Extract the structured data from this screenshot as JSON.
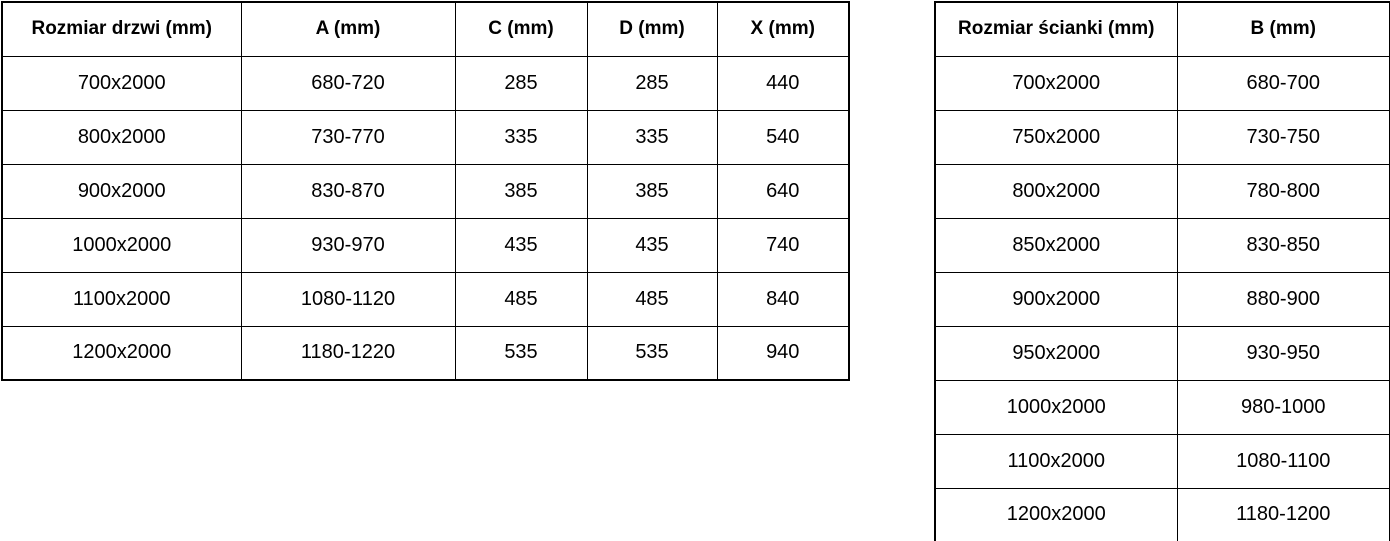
{
  "colors": {
    "background": "#ffffff",
    "border": "#000000",
    "text": "#000000"
  },
  "door_table": {
    "headers": [
      "Rozmiar drzwi (mm)",
      "A (mm)",
      "C (mm)",
      "D (mm)",
      "X (mm)"
    ],
    "rows": [
      [
        "700x2000",
        "680-720",
        "285",
        "285",
        "440"
      ],
      [
        "800x2000",
        "730-770",
        "335",
        "335",
        "540"
      ],
      [
        "900x2000",
        "830-870",
        "385",
        "385",
        "640"
      ],
      [
        "1000x2000",
        "930-970",
        "435",
        "435",
        "740"
      ],
      [
        "1100x2000",
        "1080-1120",
        "485",
        "485",
        "840"
      ],
      [
        "1200x2000",
        "1180-1220",
        "535",
        "535",
        "940"
      ]
    ]
  },
  "wall_table": {
    "headers": [
      "Rozmiar ścianki (mm)",
      "B (mm)"
    ],
    "rows": [
      [
        "700x2000",
        "680-700"
      ],
      [
        "750x2000",
        "730-750"
      ],
      [
        "800x2000",
        "780-800"
      ],
      [
        "850x2000",
        "830-850"
      ],
      [
        "900x2000",
        "880-900"
      ],
      [
        "950x2000",
        "930-950"
      ],
      [
        "1000x2000",
        "980-1000"
      ],
      [
        "1100x2000",
        "1080-1100"
      ],
      [
        "1200x2000",
        "1180-1200"
      ]
    ]
  }
}
